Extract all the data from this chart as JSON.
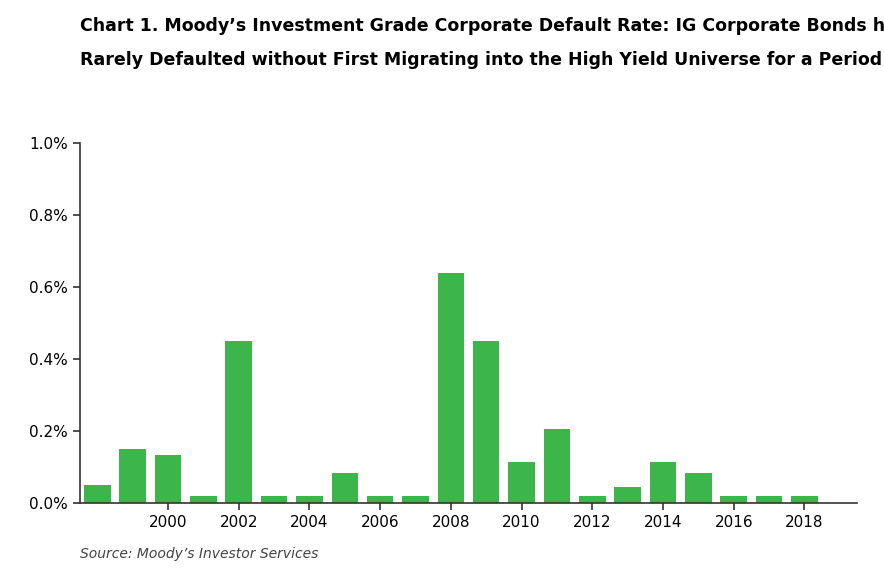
{
  "title_line1": "Chart 1. Moody’s Investment Grade Corporate Default Rate: IG Corporate Bonds have",
  "title_line2": "Rarely Defaulted without First Migrating into the High Yield Universe for a Period of Time",
  "source": "Source: Moody’s Investor Services",
  "bar_color": "#3cb54a",
  "years": [
    1998,
    1999,
    2000,
    2001,
    2002,
    2003,
    2004,
    2005,
    2006,
    2007,
    2008,
    2009,
    2010,
    2011,
    2012,
    2013,
    2014,
    2015,
    2016,
    2017,
    2018
  ],
  "values": [
    0.0005,
    0.0015,
    0.00135,
    0.0002,
    0.0045,
    0.0002,
    0.0002,
    0.00085,
    0.0002,
    0.0002,
    0.0064,
    0.0045,
    0.00115,
    0.00205,
    0.0002,
    0.00045,
    0.00115,
    0.00085,
    0.0002,
    0.0002,
    0.0002
  ],
  "ylim": [
    0,
    0.01
  ],
  "yticks": [
    0.0,
    0.002,
    0.004,
    0.006,
    0.008,
    0.01
  ],
  "ytick_labels": [
    "0.0%",
    "0.2%",
    "0.4%",
    "0.6%",
    "0.8%",
    "1.0%"
  ],
  "xtick_positions": [
    2000,
    2002,
    2004,
    2006,
    2008,
    2010,
    2012,
    2014,
    2016,
    2018
  ],
  "xlim_left": 1997.5,
  "xlim_right": 2019.5,
  "background_color": "#ffffff",
  "bar_width": 0.75,
  "spine_color": "#333333",
  "title_fontsize": 12.5,
  "tick_fontsize": 11
}
